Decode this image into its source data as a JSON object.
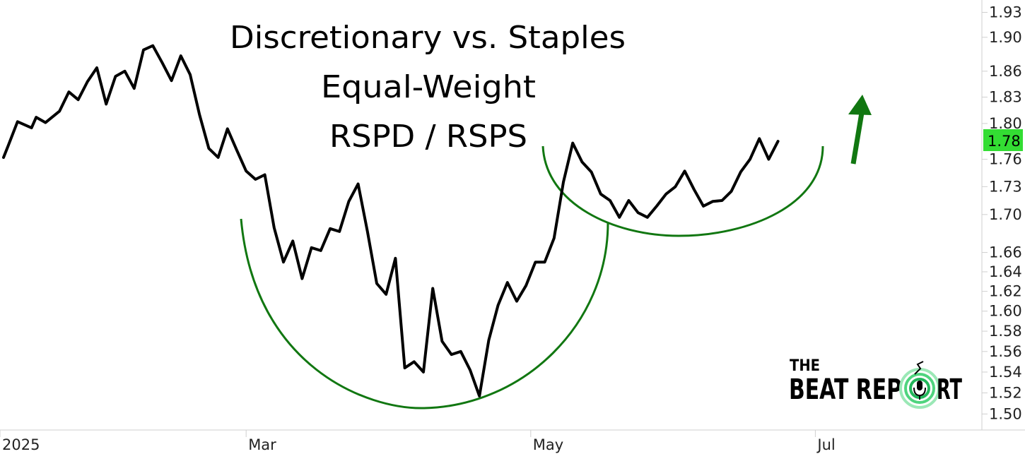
{
  "chart_data": {
    "type": "line",
    "title": [
      "Discretionary vs. Staples",
      "Equal-Weight",
      "RSPD / RSPS"
    ],
    "y_scale": "log",
    "ylim": [
      1.485,
      1.945
    ],
    "y_ticks": [
      1.93,
      1.9,
      1.86,
      1.83,
      1.8,
      1.76,
      1.73,
      1.7,
      1.66,
      1.64,
      1.62,
      1.6,
      1.58,
      1.56,
      1.54,
      1.52,
      1.5
    ],
    "y_tick_labels": [
      "1.93",
      "1.90",
      "1.86",
      "1.83",
      "1.80",
      "1.76",
      "1.73",
      "1.70",
      "1.66",
      "1.64",
      "1.62",
      "1.60",
      "1.58",
      "1.56",
      "1.54",
      "1.52",
      "1.50"
    ],
    "x_range": [
      "2025-01-08",
      "2025-07-28"
    ],
    "x_ticks": [
      {
        "date": "2025-01-01",
        "label": "2025"
      },
      {
        "date": "2025-03-01",
        "label": "Mar"
      },
      {
        "date": "2025-05-01",
        "label": "May"
      },
      {
        "date": "2025-07-01",
        "label": "Jul"
      }
    ],
    "last_value": "1.78",
    "last_value_color": "#33dd33",
    "line_color": "#000000",
    "pattern_color": "#117711",
    "grid": false,
    "series": [
      {
        "dates": [
          "2025-01-08",
          "2025-01-09",
          "2025-01-11",
          "2025-01-14",
          "2025-01-15",
          "2025-01-17",
          "2025-01-20",
          "2025-01-22",
          "2025-01-24",
          "2025-01-26",
          "2025-01-28",
          "2025-01-30",
          "2025-02-01",
          "2025-02-03",
          "2025-02-05",
          "2025-02-07",
          "2025-02-09",
          "2025-02-11",
          "2025-02-13",
          "2025-02-15",
          "2025-02-17",
          "2025-02-19",
          "2025-02-21",
          "2025-02-23",
          "2025-02-25",
          "2025-02-27",
          "2025-03-01",
          "2025-03-03",
          "2025-03-05",
          "2025-03-07",
          "2025-03-09",
          "2025-03-11",
          "2025-03-13",
          "2025-03-15",
          "2025-03-17",
          "2025-03-19",
          "2025-03-21",
          "2025-03-23",
          "2025-03-25",
          "2025-03-27",
          "2025-03-29",
          "2025-03-31",
          "2025-04-02",
          "2025-04-04",
          "2025-04-06",
          "2025-04-08",
          "2025-04-10",
          "2025-04-12",
          "2025-04-14",
          "2025-04-16",
          "2025-04-18",
          "2025-04-20",
          "2025-04-22",
          "2025-04-24",
          "2025-04-26",
          "2025-04-28",
          "2025-04-30",
          "2025-05-02",
          "2025-05-04",
          "2025-05-06",
          "2025-05-08",
          "2025-05-10",
          "2025-05-12",
          "2025-05-14",
          "2025-05-16",
          "2025-05-18",
          "2025-05-20",
          "2025-05-22",
          "2025-05-24",
          "2025-05-26",
          "2025-05-28",
          "2025-05-30",
          "2025-06-01",
          "2025-06-03",
          "2025-06-05",
          "2025-06-07",
          "2025-06-09",
          "2025-06-11",
          "2025-06-13",
          "2025-06-15",
          "2025-06-17",
          "2025-06-19",
          "2025-06-21",
          "2025-06-23"
        ],
        "values": [
          1.762,
          1.775,
          1.802,
          1.795,
          1.807,
          1.801,
          1.814,
          1.836,
          1.827,
          1.848,
          1.864,
          1.822,
          1.854,
          1.86,
          1.84,
          1.885,
          1.89,
          1.87,
          1.849,
          1.878,
          1.856,
          1.81,
          1.772,
          1.762,
          1.794,
          1.77,
          1.747,
          1.738,
          1.743,
          1.686,
          1.65,
          1.672,
          1.633,
          1.665,
          1.662,
          1.685,
          1.682,
          1.714,
          1.733,
          1.682,
          1.628,
          1.617,
          1.654,
          1.544,
          1.55,
          1.54,
          1.623,
          1.57,
          1.557,
          1.56,
          1.542,
          1.517,
          1.571,
          1.606,
          1.629,
          1.61,
          1.626,
          1.65,
          1.65,
          1.675,
          1.735,
          1.778,
          1.757,
          1.746,
          1.722,
          1.715,
          1.697,
          1.715,
          1.702,
          1.697,
          1.709,
          1.722,
          1.73,
          1.747,
          1.727,
          1.709,
          1.714,
          1.715,
          1.725,
          1.746,
          1.76,
          1.783,
          1.76,
          1.78
        ]
      }
    ]
  },
  "logo": {
    "line1": "THE",
    "line2": "BEAT REP",
    "line3": "RT"
  }
}
